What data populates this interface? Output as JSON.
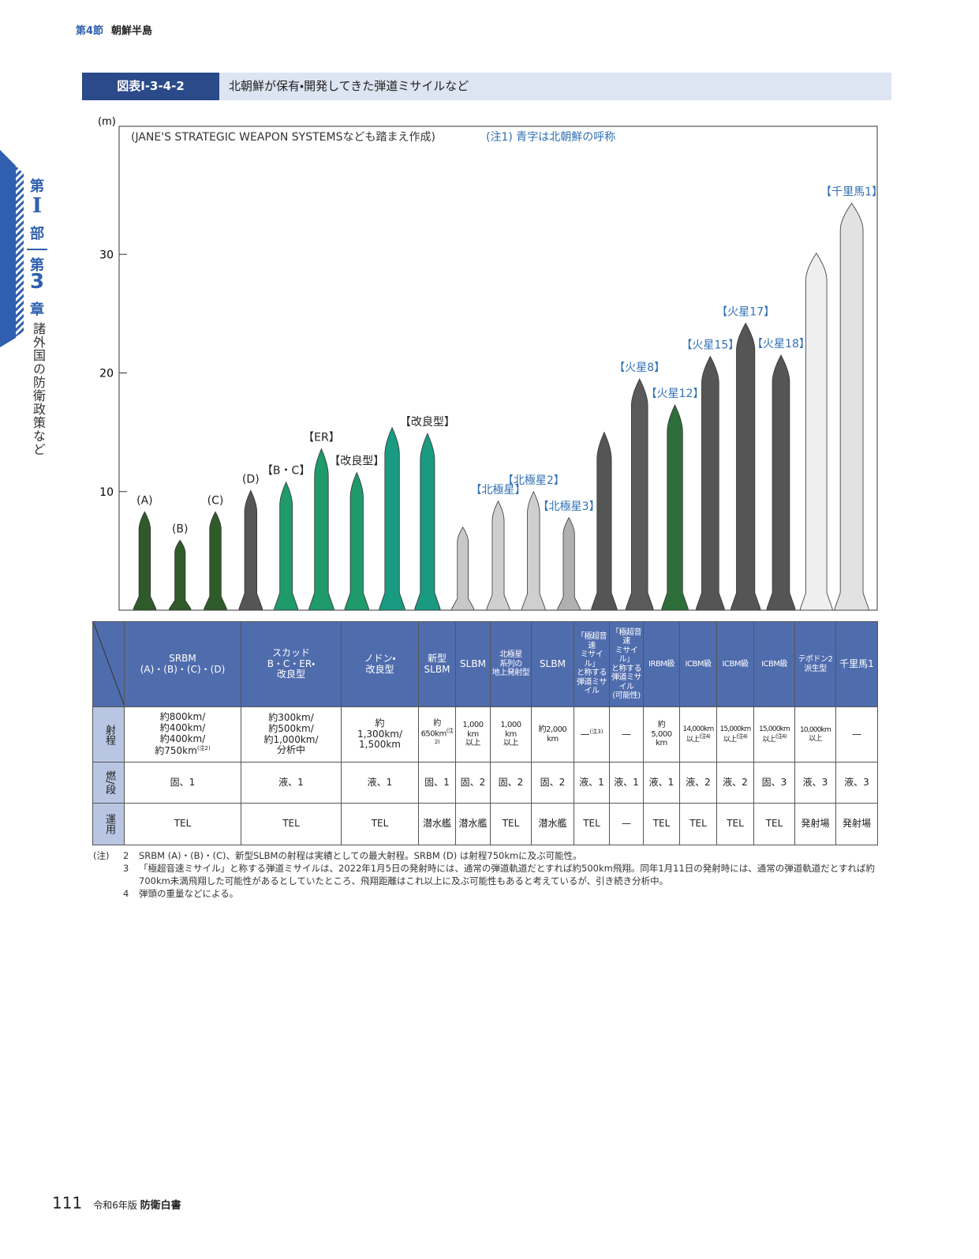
{
  "header": {
    "section": "第4節",
    "chapter": "朝鮮半島"
  },
  "side_tab": {
    "part_prefix": "第",
    "part": "I",
    "part_suffix": "部",
    "chapter_prefix": "第",
    "chapter": "3",
    "chapter_suffix": "章",
    "chapter_title": "諸外国の防衛政策など"
  },
  "figure": {
    "number": "図表Ⅰ-3-4-2",
    "title": "北朝鮮が保有・開発してきた弾道ミサイルなど"
  },
  "chart_data": {
    "type": "missile",
    "y_unit": "(m)",
    "source_note": "(JANE'S STRATEGIC WEAPON SYSTEMSなども踏まえ作成)",
    "color_note": "(注1) 青字は北朝鮮の呼称",
    "categories": [
      "(A)",
      "(B)",
      "(C)",
      "(D)",
      "【B・C】",
      "【ER】",
      "【改良型】",
      null,
      "【改良型】",
      null,
      "【北極星】",
      "【北極星2】",
      "【北極星3】",
      null,
      "【火星8】",
      "【火星12】",
      "【火星15】",
      "【火星17】",
      "【火星18】",
      null,
      "【千里馬1】"
    ],
    "label_colors": [
      "#222222",
      "#222222",
      "#222222",
      "#222222",
      "#222222",
      "#222222",
      "#222222",
      null,
      "#222222",
      null,
      "#2f6fb5",
      "#2f6fb5",
      "#2f6fb5",
      null,
      "#2f6fb5",
      "#2f6fb5",
      "#2f6fb5",
      "#2f6fb5",
      "#2f6fb5",
      null,
      "#2f6fb5"
    ],
    "values": [
      8.3,
      5.9,
      8.3,
      10.1,
      10.8,
      13.6,
      11.6,
      15.4,
      14.9,
      7.0,
      9.2,
      10.0,
      7.8,
      15.0,
      19.5,
      17.3,
      21.4,
      24.2,
      21.5,
      30.1,
      34.3
    ],
    "colors": [
      "#2f5a2a",
      "#2f5a2a",
      "#2f5a2a",
      "#555555",
      "#1f9a6a",
      "#1f9a6a",
      "#1f9a6a",
      "#1a9a80",
      "#1a9a80",
      "#c8c8c8",
      "#cfcfcf",
      "#cfcfcf",
      "#b0b0b0",
      "#555555",
      "#5a5a5a",
      "#2e6e3a",
      "#555555",
      "#555555",
      "#555555",
      "#efefef",
      "#e2e2e2"
    ],
    "ylim": [
      0,
      40.8
    ],
    "yticks": [
      10,
      20,
      30
    ]
  },
  "table": {
    "row_headers": [
      "射程",
      "燃/段",
      "運用"
    ],
    "columns": [
      "SRBM\n(A)・(B)・(C)・(D)",
      "スカッド\nB・C・ER・\n改良型",
      "ノドン・\n改良型",
      "新型\nSLBM",
      "SLBM",
      "北極星\n系列の\n地上発射型",
      "SLBM",
      "「極超音速\nミサイル」\nと称する\n弾道ミサイル",
      "「極超音速\nミサイル」\nと称する\n弾道ミサイル\n(可能性)",
      "IRBM級",
      "ICBM級",
      "ICBM級",
      "ICBM級",
      "テポドン2\n派生型",
      "千里馬1"
    ],
    "rows": [
      [
        {
          "text": "約800km/\n約400km/\n約400km/\n約750km",
          "note": "(注2)"
        },
        "約300km/\n約500km/\n約1,000km/\n分析中",
        "約\n1,300km/\n1,500km",
        {
          "text": "約\n650km",
          "note": "(注2)"
        },
        "1,000\nkm\n以上",
        "1,000\nkm\n以上",
        "約2,000\nkm",
        {
          "text": "—",
          "note": "(注3)"
        },
        "—",
        "約\n5,000\nkm",
        {
          "text": "14,000km\n以上",
          "note": "(注4)"
        },
        {
          "text": "15,000km\n以上",
          "note": "(注4)"
        },
        {
          "text": "15,000km\n以上",
          "note": "(注4)"
        },
        "10,000km\n以上",
        "—"
      ],
      [
        "固、1",
        "液、1",
        "液、1",
        "固、1",
        "固、2",
        "固、2",
        "固、2",
        "液、1",
        "液、1",
        "液、1",
        "液、2",
        "液、2",
        "固、3",
        "液、3",
        "液、3"
      ],
      [
        "TEL",
        "TEL",
        "TEL",
        "潜水艦",
        "潜水艦",
        "TEL",
        "潜水艦",
        "TEL",
        "—",
        "TEL",
        "TEL",
        "TEL",
        "TEL",
        "発射場",
        "発射場"
      ]
    ]
  },
  "notes": {
    "prefix": "(注)",
    "items": [
      {
        "number": "2",
        "text": "SRBM (A)・(B)・(C)、新型SLBMの射程は実績としての最大射程。SRBM (D) は射程750kmに及ぶ可能性。"
      },
      {
        "number": "3",
        "text": "「極超音速ミサイル」と称する弾道ミサイルは、2022年1月5日の発射時には、通常の弾道軌道だとすれば約500km飛翔。同年1月11日の発射時には、通常の弾道軌道だとすれば約700km未満飛翔した可能性があるとしていたところ、飛翔距離はこれ以上に及ぶ可能性もあると考えているが、引き続き分析中。"
      },
      {
        "number": "4",
        "text": "弾頭の重量などによる。"
      }
    ]
  },
  "footer": {
    "page": "111",
    "edition": "令和6年版",
    "book": "防衛白書"
  }
}
